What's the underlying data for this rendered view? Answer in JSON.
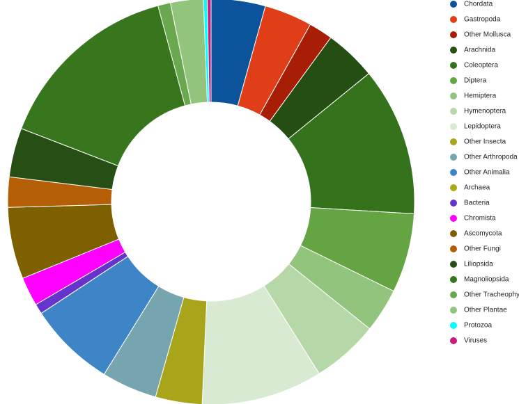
{
  "chart_data": {
    "type": "donut",
    "categories": [
      "Chordata",
      "Gastropoda",
      "Other Mollusca",
      "Arachnida",
      "Coleoptera",
      "Diptera",
      "Hemiptera",
      "Hymenoptera",
      "Lepidoptera",
      "Other Insecta",
      "Other Arthropoda",
      "Other Animalia",
      "Archaea",
      "Bacteria",
      "Chromista",
      "Ascomycota",
      "Other Fungi",
      "Liliopsida",
      "Magnoliopsida",
      "Other Tracheophyta",
      "Other Plantae",
      "Protozoa",
      "Viruses"
    ],
    "values": [
      4.3,
      3.8,
      1.9,
      4.1,
      11.8,
      6.3,
      3.5,
      5.3,
      9.6,
      3.7,
      4.4,
      6.9,
      0,
      0.8,
      2.3,
      5.7,
      2.4,
      3.9,
      14.9,
      1.0,
      2.6,
      0.3,
      0.3
    ],
    "colors": [
      "#0b539a",
      "#e03e18",
      "#a81d06",
      "#244e12",
      "#34731c",
      "#64a443",
      "#93c47d",
      "#b6d7a8",
      "#d9ead3",
      "#a8a51a",
      "#76a5af",
      "#3d85c6",
      "#aaaa11",
      "#6633cc",
      "#ff00ff",
      "#7f6000",
      "#b45f06",
      "#274e13",
      "#38761d",
      "#6aa84f",
      "#93c47d",
      "#00ffff",
      "#c51b7d"
    ],
    "legend": "right"
  }
}
